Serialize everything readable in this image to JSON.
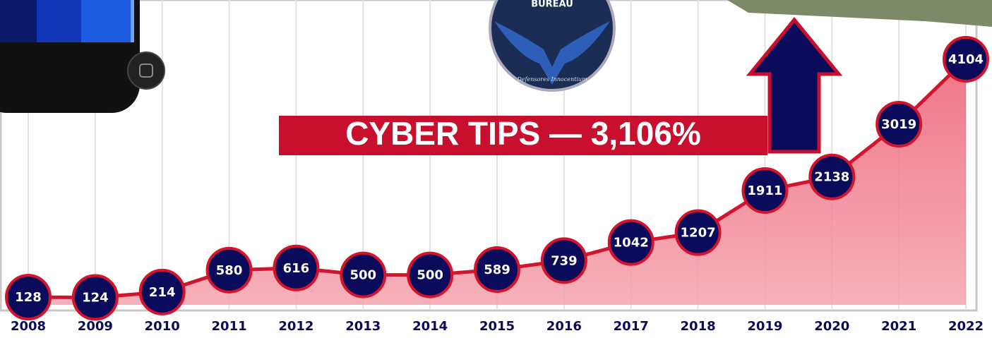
{
  "chart_data": {
    "type": "area",
    "title": "CYBER TIPS — 3,106%",
    "annotations": [
      "BUREAU",
      "Defensores Innocentium"
    ],
    "categories": [
      "2008",
      "2009",
      "2010",
      "2011",
      "2012",
      "2013",
      "2014",
      "2015",
      "2016",
      "2017",
      "2018",
      "2019",
      "2020",
      "2021",
      "2022"
    ],
    "values": [
      128,
      124,
      214,
      580,
      616,
      500,
      500,
      589,
      739,
      1042,
      1207,
      1911,
      2138,
      3019,
      4104
    ],
    "color": "#d4132c",
    "fill": "#f07a8a",
    "marker_color": "#0b0b5c",
    "grid": true
  }
}
